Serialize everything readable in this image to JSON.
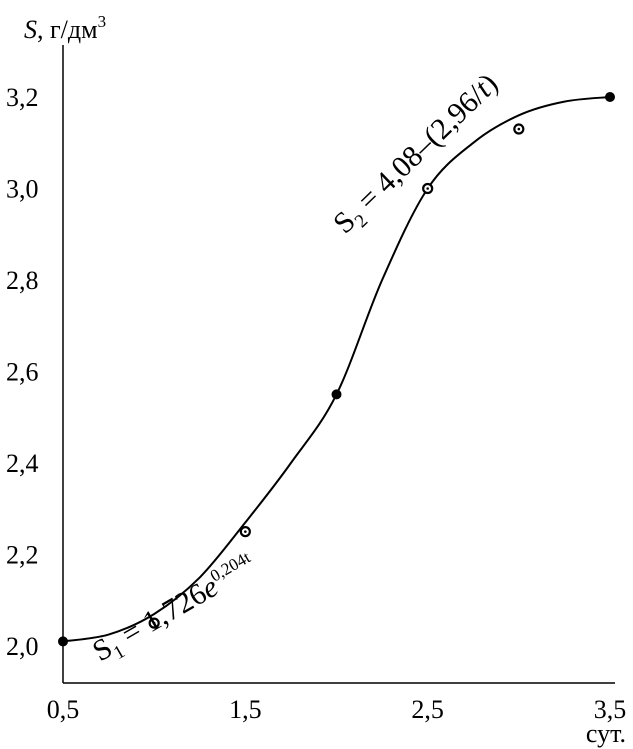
{
  "chart_data": {
    "type": "scatter",
    "title": "",
    "ylabel": {
      "symbol": "S",
      "unit": ", г/дм",
      "unit_sup": "3"
    },
    "xlabel": "сут.",
    "xlim": [
      0.5,
      3.5
    ],
    "ylim": [
      2.0,
      3.3
    ],
    "x_ticks": [
      "0,5",
      "1,5",
      "2,5",
      "3,5"
    ],
    "x_tick_values": [
      0.5,
      1.5,
      2.5,
      3.5
    ],
    "y_ticks": [
      "2,0",
      "2,2",
      "2,4",
      "2,6",
      "2,8",
      "3,0",
      "3,2"
    ],
    "y_tick_values": [
      2.0,
      2.2,
      2.4,
      2.6,
      2.8,
      3.0,
      3.2
    ],
    "grid": false,
    "points": [
      {
        "x": 0.5,
        "y": 2.01,
        "marker": "filled"
      },
      {
        "x": 1.0,
        "y": 2.05,
        "marker": "ring"
      },
      {
        "x": 1.5,
        "y": 2.25,
        "marker": "ring"
      },
      {
        "x": 2.0,
        "y": 2.55,
        "marker": "filled"
      },
      {
        "x": 2.5,
        "y": 3.0,
        "marker": "ring"
      },
      {
        "x": 3.0,
        "y": 3.13,
        "marker": "ring"
      },
      {
        "x": 3.5,
        "y": 3.2,
        "marker": "filled"
      }
    ],
    "fit_curve": {
      "x": [
        0.5,
        0.75,
        1.0,
        1.25,
        1.5,
        1.75,
        2.0,
        2.25,
        2.5,
        2.75,
        3.0,
        3.25,
        3.5
      ],
      "y": [
        2.01,
        2.025,
        2.07,
        2.15,
        2.27,
        2.4,
        2.55,
        2.8,
        3.0,
        3.1,
        3.16,
        3.19,
        3.2
      ]
    },
    "annotations": {
      "eq1": {
        "base": "S",
        "sub": "1",
        "main": " = 1,726",
        "e": "e",
        "sup": "0,204t"
      },
      "eq2": {
        "base": "S",
        "sub": "2",
        "main": " = 4,08–(2,96/",
        "t": "t",
        "close": ")"
      }
    }
  }
}
